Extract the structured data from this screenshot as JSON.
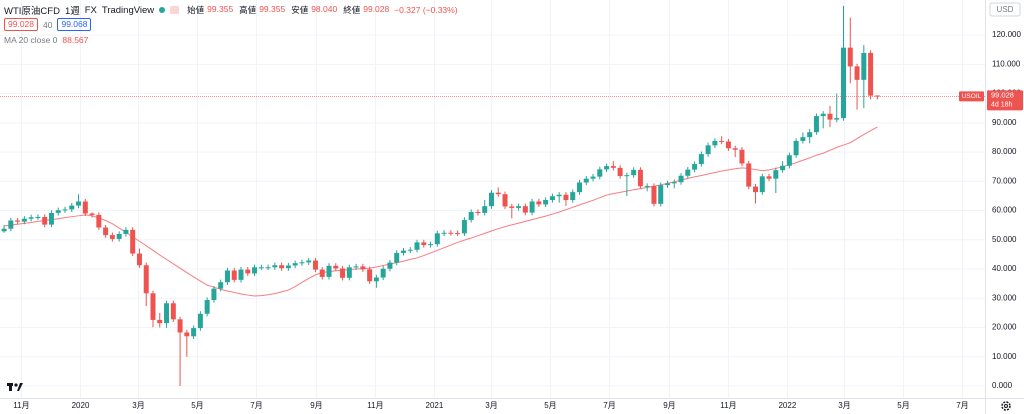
{
  "chart_data": {
    "type": "candlestick",
    "header": {
      "symbol": "WTI原油CFD",
      "interval": "1週",
      "source": "FX",
      "publisher": "TradingView",
      "ohlc": [
        {
          "label": "始値",
          "value": "99.355"
        },
        {
          "label": "高値",
          "value": "99.355"
        },
        {
          "label": "安値",
          "value": "98.040"
        },
        {
          "label": "終値",
          "value": "99.028"
        }
      ],
      "change": "−0.327 (−0.33%)",
      "bid": "99.028",
      "spread": "40",
      "ask": "99.068"
    },
    "currency": "USD",
    "up_color": "#26a69a",
    "down_color": "#ef5350",
    "grid": true,
    "ylim": [
      -4.1,
      132.0
    ],
    "yticks": [
      {
        "value": 0,
        "label": "0.000"
      },
      {
        "value": 10,
        "label": "10.000"
      },
      {
        "value": 20,
        "label": "20.000"
      },
      {
        "value": 30,
        "label": "30.000"
      },
      {
        "value": 40,
        "label": "40.000"
      },
      {
        "value": 50,
        "label": "50.000"
      },
      {
        "value": 60,
        "label": "60.000"
      },
      {
        "value": 70,
        "label": "70.000"
      },
      {
        "value": 80,
        "label": "80.000"
      },
      {
        "value": 90,
        "label": "90.000"
      },
      {
        "value": 100,
        "label": "100.000"
      },
      {
        "value": 110,
        "label": "110.000"
      },
      {
        "value": 120,
        "label": "120.000"
      }
    ],
    "xlim": [
      -0.6,
      144.9
    ],
    "xticks": [
      {
        "value": 2.57,
        "label": "11月"
      },
      {
        "value": 11.29,
        "label": "2020"
      },
      {
        "value": 19.86,
        "label": "3月"
      },
      {
        "value": 28.57,
        "label": "5月"
      },
      {
        "value": 37.29,
        "label": "7月"
      },
      {
        "value": 46.14,
        "label": "9月"
      },
      {
        "value": 54.86,
        "label": "11月"
      },
      {
        "value": 63.57,
        "label": "2021"
      },
      {
        "value": 72,
        "label": "3月"
      },
      {
        "value": 80.71,
        "label": "5月"
      },
      {
        "value": 89.43,
        "label": "7月"
      },
      {
        "value": 98.29,
        "label": "9月"
      },
      {
        "value": 107,
        "label": "11月"
      },
      {
        "value": 115.71,
        "label": "2022"
      },
      {
        "value": 124.14,
        "label": "3月"
      },
      {
        "value": 132.86,
        "label": "5月"
      },
      {
        "value": 141.57,
        "label": "7月"
      }
    ],
    "ohlc": [
      [
        52.9,
        55.0,
        52.4,
        53.8
      ],
      [
        53.8,
        57.5,
        52.9,
        56.6
      ],
      [
        56.6,
        57.5,
        55.3,
        56.2
      ],
      [
        56.2,
        58.1,
        55.3,
        57.2
      ],
      [
        57.2,
        58.6,
        56.3,
        57.7
      ],
      [
        57.7,
        58.7,
        56.8,
        57.8
      ],
      [
        57.8,
        58.7,
        54.3,
        55.2
      ],
      [
        55.2,
        60.1,
        54.3,
        59.2
      ],
      [
        59.2,
        61.0,
        58.3,
        60.1
      ],
      [
        60.1,
        61.3,
        59.2,
        60.4
      ],
      [
        60.4,
        62.6,
        59.5,
        61.7
      ],
      [
        61.7,
        65.6,
        60.8,
        63.1
      ],
      [
        63.1,
        64.0,
        58.1,
        59.0
      ],
      [
        59.0,
        59.4,
        57.6,
        58.5
      ],
      [
        58.5,
        59.4,
        53.3,
        54.2
      ],
      [
        54.2,
        55.1,
        50.7,
        51.6
      ],
      [
        51.6,
        52.5,
        49.4,
        50.3
      ],
      [
        50.3,
        52.9,
        49.4,
        52.0
      ],
      [
        52.0,
        54.3,
        51.1,
        53.4
      ],
      [
        53.4,
        54.3,
        44.4,
        45.3
      ],
      [
        45.3,
        47.0,
        40.4,
        41.3
      ],
      [
        41.3,
        42.2,
        27.3,
        31.7
      ],
      [
        31.7,
        32.6,
        20.1,
        22.6
      ],
      [
        22.6,
        25.0,
        20.0,
        21.5
      ],
      [
        21.5,
        29.2,
        19.9,
        28.3
      ],
      [
        28.3,
        29.2,
        21.9,
        22.8
      ],
      [
        22.8,
        23.7,
        0.0,
        18.3
      ],
      [
        18.3,
        19.2,
        10.0,
        17.0
      ],
      [
        17.0,
        20.7,
        16.1,
        19.8
      ],
      [
        19.8,
        25.6,
        18.9,
        24.7
      ],
      [
        24.7,
        30.3,
        23.8,
        29.4
      ],
      [
        29.4,
        34.2,
        28.5,
        33.3
      ],
      [
        33.3,
        36.4,
        32.4,
        35.5
      ],
      [
        35.5,
        40.4,
        34.6,
        39.5
      ],
      [
        39.5,
        40.4,
        35.4,
        36.3
      ],
      [
        36.3,
        40.7,
        35.4,
        39.8
      ],
      [
        39.8,
        40.7,
        37.6,
        38.5
      ],
      [
        38.5,
        41.5,
        37.6,
        40.6
      ],
      [
        40.6,
        41.5,
        39.7,
        40.6
      ],
      [
        40.6,
        41.5,
        39.7,
        40.6
      ],
      [
        40.6,
        42.2,
        39.7,
        41.3
      ],
      [
        41.3,
        42.2,
        39.4,
        40.3
      ],
      [
        40.3,
        42.1,
        39.4,
        41.2
      ],
      [
        41.2,
        42.9,
        40.3,
        42.0
      ],
      [
        42.0,
        43.2,
        41.1,
        42.3
      ],
      [
        42.3,
        43.8,
        41.4,
        42.9
      ],
      [
        42.9,
        43.8,
        38.9,
        39.8
      ],
      [
        39.8,
        40.7,
        36.4,
        37.3
      ],
      [
        37.3,
        42.0,
        36.4,
        41.1
      ],
      [
        41.1,
        42.0,
        39.3,
        40.2
      ],
      [
        40.2,
        41.1,
        36.1,
        37.0
      ],
      [
        37.0,
        41.5,
        36.1,
        40.6
      ],
      [
        40.6,
        41.8,
        39.7,
        40.9
      ],
      [
        40.9,
        41.8,
        39.0,
        39.9
      ],
      [
        39.9,
        40.8,
        34.9,
        35.8
      ],
      [
        35.8,
        38.0,
        33.6,
        37.1
      ],
      [
        37.1,
        41.0,
        36.2,
        40.1
      ],
      [
        40.1,
        43.1,
        39.2,
        42.2
      ],
      [
        42.2,
        46.4,
        41.3,
        45.5
      ],
      [
        45.5,
        47.2,
        44.6,
        46.3
      ],
      [
        46.3,
        47.5,
        45.4,
        46.6
      ],
      [
        46.6,
        50.0,
        45.7,
        49.1
      ],
      [
        49.1,
        50.0,
        47.3,
        48.2
      ],
      [
        48.2,
        49.4,
        47.3,
        48.5
      ],
      [
        48.5,
        53.1,
        47.6,
        52.2
      ],
      [
        52.2,
        53.3,
        51.3,
        52.4
      ],
      [
        52.4,
        53.3,
        51.4,
        52.3
      ],
      [
        52.3,
        53.2,
        51.3,
        52.2
      ],
      [
        52.2,
        57.7,
        51.3,
        56.8
      ],
      [
        56.8,
        60.4,
        55.9,
        59.5
      ],
      [
        59.5,
        60.4,
        58.3,
        59.2
      ],
      [
        59.2,
        63.6,
        58.3,
        61.5
      ],
      [
        61.5,
        67.0,
        60.6,
        66.1
      ],
      [
        66.1,
        67.9,
        64.7,
        65.6
      ],
      [
        65.6,
        66.5,
        60.5,
        61.4
      ],
      [
        61.4,
        62.3,
        57.3,
        60.9
      ],
      [
        60.9,
        62.4,
        60.0,
        61.5
      ],
      [
        61.5,
        62.4,
        58.4,
        59.3
      ],
      [
        59.3,
        64.0,
        58.4,
        63.1
      ],
      [
        63.1,
        64.0,
        61.2,
        62.1
      ],
      [
        62.1,
        64.5,
        61.2,
        63.6
      ],
      [
        63.6,
        65.8,
        62.7,
        64.9
      ],
      [
        64.9,
        66.3,
        62.7,
        65.4
      ],
      [
        65.4,
        66.3,
        61.6,
        63.6
      ],
      [
        63.6,
        67.2,
        62.7,
        66.3
      ],
      [
        66.3,
        70.5,
        65.4,
        69.6
      ],
      [
        69.6,
        71.8,
        68.7,
        70.9
      ],
      [
        70.9,
        72.5,
        70.0,
        71.6
      ],
      [
        71.6,
        75.0,
        70.7,
        74.1
      ],
      [
        74.1,
        76.1,
        73.2,
        75.2
      ],
      [
        75.2,
        76.9,
        73.7,
        74.6
      ],
      [
        74.6,
        75.5,
        70.9,
        71.8
      ],
      [
        71.8,
        73.0,
        65.0,
        72.1
      ],
      [
        72.1,
        74.8,
        71.2,
        73.9
      ],
      [
        73.9,
        74.8,
        67.4,
        68.3
      ],
      [
        68.3,
        69.3,
        66.6,
        68.4
      ],
      [
        68.4,
        69.3,
        61.4,
        62.3
      ],
      [
        62.3,
        69.6,
        61.4,
        68.7
      ],
      [
        68.7,
        70.2,
        67.8,
        69.3
      ],
      [
        69.3,
        70.6,
        67.6,
        69.7
      ],
      [
        69.7,
        72.8,
        68.8,
        71.9
      ],
      [
        71.9,
        74.9,
        71.0,
        74.0
      ],
      [
        74.0,
        76.8,
        73.1,
        75.9
      ],
      [
        75.9,
        80.2,
        75.0,
        79.3
      ],
      [
        79.3,
        83.2,
        78.4,
        82.3
      ],
      [
        82.3,
        84.7,
        81.4,
        83.8
      ],
      [
        83.8,
        85.4,
        82.7,
        83.6
      ],
      [
        83.6,
        84.5,
        80.4,
        81.3
      ],
      [
        81.3,
        82.2,
        78.3,
        80.8
      ],
      [
        80.8,
        81.7,
        75.2,
        76.1
      ],
      [
        76.1,
        77.0,
        67.3,
        68.2
      ],
      [
        68.2,
        69.1,
        62.4,
        66.3
      ],
      [
        66.3,
        72.6,
        65.4,
        71.7
      ],
      [
        71.7,
        72.6,
        70.0,
        70.9
      ],
      [
        70.9,
        74.7,
        66.0,
        73.8
      ],
      [
        73.8,
        76.9,
        72.9,
        75.3
      ],
      [
        75.3,
        79.8,
        74.4,
        78.9
      ],
      [
        78.9,
        84.7,
        78.0,
        83.8
      ],
      [
        83.8,
        86.7,
        82.9,
        85.1
      ],
      [
        85.1,
        87.9,
        83.0,
        86.8
      ],
      [
        86.8,
        93.2,
        85.9,
        92.3
      ],
      [
        92.3,
        94.0,
        88.1,
        93.1
      ],
      [
        93.1,
        95.8,
        88.5,
        91.1
      ],
      [
        91.1,
        100.0,
        90.2,
        91.6
      ],
      [
        91.6,
        130.0,
        90.7,
        115.7
      ],
      [
        115.7,
        126.0,
        103.5,
        109.3
      ],
      [
        109.3,
        110.2,
        94.5,
        104.7
      ],
      [
        104.7,
        116.6,
        95.0,
        113.9
      ],
      [
        113.9,
        114.8,
        98.0,
        99.3
      ],
      [
        99.355,
        99.355,
        98.04,
        99.028
      ]
    ],
    "ma": {
      "name": "MA 20 close 0",
      "color": "#f77c80",
      "values": [
        54.7,
        55.0,
        55.3,
        55.6,
        55.9,
        56.3,
        56.6,
        56.9,
        57.2,
        57.6,
        57.9,
        58.2,
        58.5,
        58.2,
        57.5,
        56.6,
        55.5,
        54.0,
        52.5,
        51.0,
        49.5,
        48.0,
        46.4,
        44.8,
        43.3,
        41.8,
        40.3,
        38.8,
        37.3,
        35.9,
        34.5,
        33.8,
        33.1,
        32.5,
        32.0,
        31.5,
        31.1,
        30.8,
        30.9,
        31.2,
        31.6,
        32.2,
        32.8,
        34.0,
        35.4,
        36.8,
        38.0,
        38.8,
        39.1,
        39.4,
        39.6,
        39.8,
        40.0,
        40.1,
        40.3,
        40.7,
        41.2,
        41.7,
        42.2,
        42.7,
        43.3,
        43.8,
        44.6,
        45.5,
        46.4,
        47.3,
        48.2,
        49.1,
        49.9,
        50.6,
        51.4,
        52.2,
        53.0,
        53.8,
        54.5,
        55.1,
        55.7,
        56.3,
        56.9,
        57.5,
        58.1,
        58.8,
        59.5,
        60.3,
        61.1,
        61.9,
        62.7,
        63.5,
        64.4,
        65.3,
        65.8,
        66.2,
        66.7,
        67.1,
        67.5,
        67.9,
        68.3,
        68.8,
        69.3,
        69.8,
        70.4,
        71.0,
        71.5,
        72.0,
        72.5,
        73.0,
        73.5,
        73.9,
        74.3,
        74.6,
        74.4,
        74.0,
        73.6,
        73.9,
        74.4,
        75.0,
        75.6,
        76.4,
        77.2,
        78.0,
        78.9,
        79.6,
        80.6,
        81.6,
        82.4,
        83.2,
        84.6,
        86.0,
        87.3,
        88.567
      ]
    },
    "price_line": {
      "value": 99.028,
      "label": "99.028",
      "symbol": "USOIL",
      "countdown": "4d 18h",
      "color": "#ef5350"
    }
  }
}
